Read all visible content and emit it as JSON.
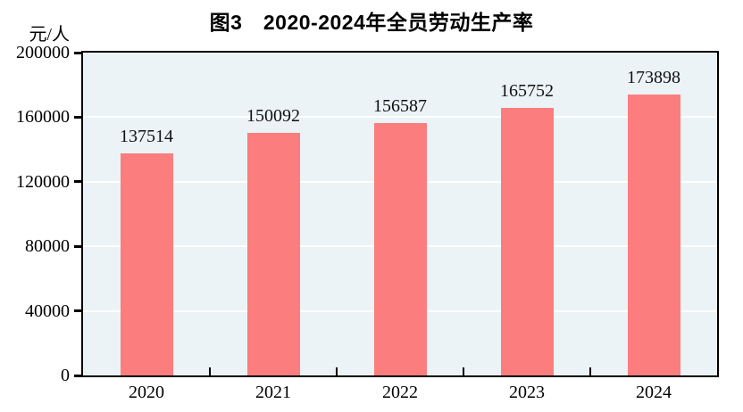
{
  "chart_data": {
    "type": "bar",
    "title": "图3　2020-2024年全员劳动生产率",
    "unit_label": "元/人",
    "xlabel": "",
    "ylabel": "元/人",
    "categories": [
      "2020",
      "2021",
      "2022",
      "2023",
      "2024"
    ],
    "values": [
      137514,
      150092,
      156587,
      165752,
      173898
    ],
    "data_labels": [
      "137514",
      "150092",
      "156587",
      "165752",
      "173898"
    ],
    "ylim": [
      0,
      200000
    ],
    "yticks": [
      0,
      40000,
      80000,
      120000,
      160000,
      200000
    ],
    "ytick_labels": [
      "0",
      "40000",
      "80000",
      "120000",
      "160000",
      "200000"
    ],
    "legend": "none",
    "grid": "horizontal",
    "colors": {
      "bar": "#fb7d7d",
      "plot_background": "#ebf3f6",
      "gridline": "#ffffff",
      "frame": "#000000",
      "text": "#000000"
    }
  }
}
